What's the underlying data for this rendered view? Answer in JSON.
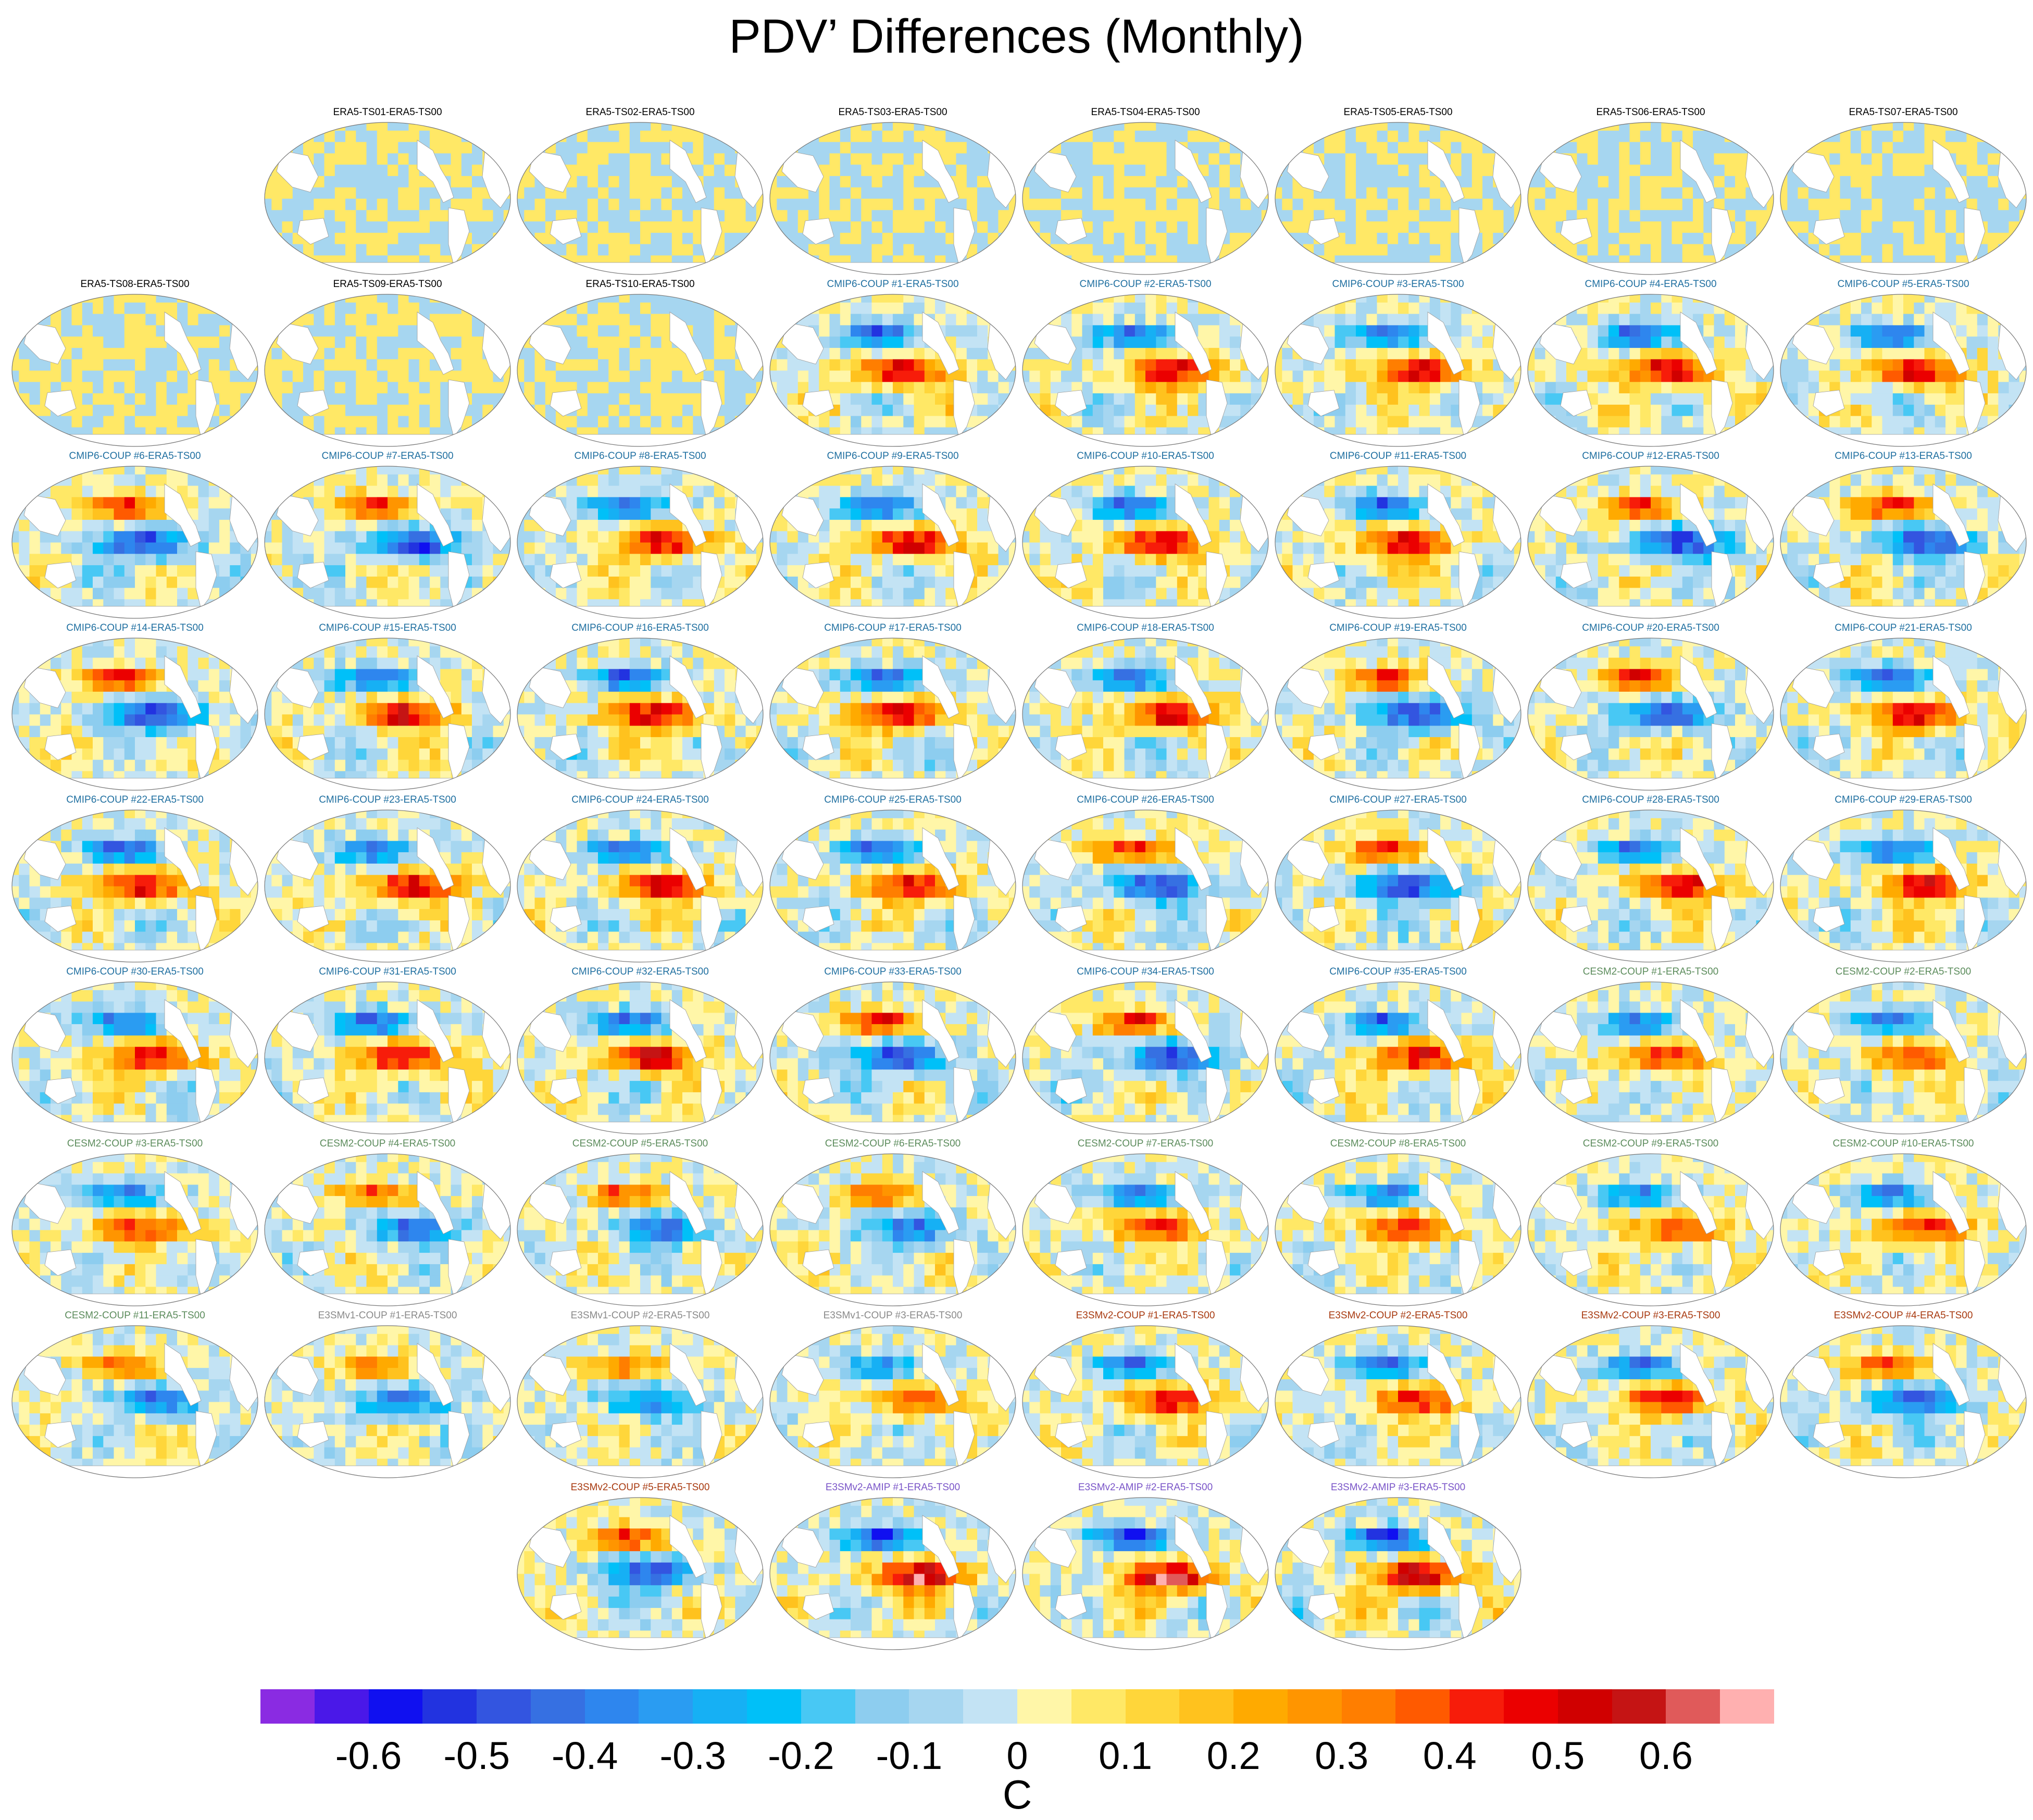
{
  "title": "PDV’ Differences (Monthly)",
  "chart_data": {
    "type": "heatmap",
    "title": "PDV’ Differences (Monthly)",
    "description_unit": "C",
    "colorbar": {
      "label": "C",
      "ticks": [
        -0.6,
        -0.5,
        -0.4,
        -0.3,
        -0.2,
        -0.1,
        0,
        0.1,
        0.2,
        0.3,
        0.4,
        0.5,
        0.6
      ],
      "tick_labels": [
        "-0.6",
        "-0.5",
        "-0.4",
        "-0.3",
        "-0.2",
        "-0.1",
        "0",
        "0.1",
        "0.2",
        "0.3",
        "0.4",
        "0.5",
        "0.6"
      ],
      "range": [
        -0.7,
        0.7
      ],
      "colors": [
        "#8a2be2",
        "#4a18e8",
        "#1010f0",
        "#2233e0",
        "#3355e0",
        "#3670e2",
        "#2e86ee",
        "#2a9cf2",
        "#16b0f4",
        "#00c0f8",
        "#48c8f4",
        "#8dcdef",
        "#a6d6f0",
        "#c3e3f4",
        "#fff6a8",
        "#ffe866",
        "#ffd63a",
        "#ffc21e",
        "#ffaa00",
        "#ff9500",
        "#ff7e00",
        "#ff5a00",
        "#f71c0a",
        "#eb0000",
        "#d00000",
        "#c51414",
        "#e05a5a",
        "#ffb0b0"
      ]
    },
    "panels": [
      {
        "label": "ERA5-TS01-ERA5-TS00",
        "group": "ERA5",
        "intensity": 0.15
      },
      {
        "label": "ERA5-TS02-ERA5-TS00",
        "group": "ERA5",
        "intensity": 0.15
      },
      {
        "label": "ERA5-TS03-ERA5-TS00",
        "group": "ERA5",
        "intensity": 0.15
      },
      {
        "label": "ERA5-TS04-ERA5-TS00",
        "group": "ERA5",
        "intensity": 0.15
      },
      {
        "label": "ERA5-TS05-ERA5-TS00",
        "group": "ERA5",
        "intensity": 0.15
      },
      {
        "label": "ERA5-TS06-ERA5-TS00",
        "group": "ERA5",
        "intensity": 0.15
      },
      {
        "label": "ERA5-TS07-ERA5-TS00",
        "group": "ERA5",
        "intensity": 0.15
      },
      {
        "label": "ERA5-TS08-ERA5-TS00",
        "group": "ERA5",
        "intensity": 0.15
      },
      {
        "label": "ERA5-TS09-ERA5-TS00",
        "group": "ERA5",
        "intensity": 0.15
      },
      {
        "label": "ERA5-TS10-ERA5-TS00",
        "group": "ERA5",
        "intensity": 0.15
      },
      {
        "label": "CMIP6-COUP  #1-ERA5-TS00",
        "group": "CMIP6",
        "intensity": 0.55
      },
      {
        "label": "CMIP6-COUP  #2-ERA5-TS00",
        "group": "CMIP6",
        "intensity": 0.55
      },
      {
        "label": "CMIP6-COUP  #3-ERA5-TS00",
        "group": "CMIP6",
        "intensity": 0.55
      },
      {
        "label": "CMIP6-COUP  #4-ERA5-TS00",
        "group": "CMIP6",
        "intensity": 0.55
      },
      {
        "label": "CMIP6-COUP  #5-ERA5-TS00",
        "group": "CMIP6",
        "intensity": 0.55
      },
      {
        "label": "CMIP6-COUP  #6-ERA5-TS00",
        "group": "CMIP6",
        "intensity": 0.55
      },
      {
        "label": "CMIP6-COUP  #7-ERA5-TS00",
        "group": "CMIP6",
        "intensity": 0.55
      },
      {
        "label": "CMIP6-COUP  #8-ERA5-TS00",
        "group": "CMIP6",
        "intensity": 0.55
      },
      {
        "label": "CMIP6-COUP  #9-ERA5-TS00",
        "group": "CMIP6",
        "intensity": 0.55
      },
      {
        "label": "CMIP6-COUP  #10-ERA5-TS00",
        "group": "CMIP6",
        "intensity": 0.55
      },
      {
        "label": "CMIP6-COUP  #11-ERA5-TS00",
        "group": "CMIP6",
        "intensity": 0.55
      },
      {
        "label": "CMIP6-COUP  #12-ERA5-TS00",
        "group": "CMIP6",
        "intensity": 0.55
      },
      {
        "label": "CMIP6-COUP  #13-ERA5-TS00",
        "group": "CMIP6",
        "intensity": 0.55
      },
      {
        "label": "CMIP6-COUP  #14-ERA5-TS00",
        "group": "CMIP6",
        "intensity": 0.55
      },
      {
        "label": "CMIP6-COUP  #15-ERA5-TS00",
        "group": "CMIP6",
        "intensity": 0.55
      },
      {
        "label": "CMIP6-COUP  #16-ERA5-TS00",
        "group": "CMIP6",
        "intensity": 0.55
      },
      {
        "label": "CMIP6-COUP  #17-ERA5-TS00",
        "group": "CMIP6",
        "intensity": 0.55
      },
      {
        "label": "CMIP6-COUP  #18-ERA5-TS00",
        "group": "CMIP6",
        "intensity": 0.55
      },
      {
        "label": "CMIP6-COUP  #19-ERA5-TS00",
        "group": "CMIP6",
        "intensity": 0.55
      },
      {
        "label": "CMIP6-COUP  #20-ERA5-TS00",
        "group": "CMIP6",
        "intensity": 0.55
      },
      {
        "label": "CMIP6-COUP  #21-ERA5-TS00",
        "group": "CMIP6",
        "intensity": 0.55
      },
      {
        "label": "CMIP6-COUP  #22-ERA5-TS00",
        "group": "CMIP6",
        "intensity": 0.55
      },
      {
        "label": "CMIP6-COUP  #23-ERA5-TS00",
        "group": "CMIP6",
        "intensity": 0.55
      },
      {
        "label": "CMIP6-COUP  #24-ERA5-TS00",
        "group": "CMIP6",
        "intensity": 0.55
      },
      {
        "label": "CMIP6-COUP  #25-ERA5-TS00",
        "group": "CMIP6",
        "intensity": 0.55
      },
      {
        "label": "CMIP6-COUP  #26-ERA5-TS00",
        "group": "CMIP6",
        "intensity": 0.55
      },
      {
        "label": "CMIP6-COUP  #27-ERA5-TS00",
        "group": "CMIP6",
        "intensity": 0.55
      },
      {
        "label": "CMIP6-COUP  #28-ERA5-TS00",
        "group": "CMIP6",
        "intensity": 0.55
      },
      {
        "label": "CMIP6-COUP  #29-ERA5-TS00",
        "group": "CMIP6",
        "intensity": 0.55
      },
      {
        "label": "CMIP6-COUP  #30-ERA5-TS00",
        "group": "CMIP6",
        "intensity": 0.55
      },
      {
        "label": "CMIP6-COUP  #31-ERA5-TS00",
        "group": "CMIP6",
        "intensity": 0.55
      },
      {
        "label": "CMIP6-COUP  #32-ERA5-TS00",
        "group": "CMIP6",
        "intensity": 0.55
      },
      {
        "label": "CMIP6-COUP  #33-ERA5-TS00",
        "group": "CMIP6",
        "intensity": 0.55
      },
      {
        "label": "CMIP6-COUP  #34-ERA5-TS00",
        "group": "CMIP6",
        "intensity": 0.55
      },
      {
        "label": "CMIP6-COUP  #35-ERA5-TS00",
        "group": "CMIP6",
        "intensity": 0.55
      },
      {
        "label": "CESM2-COUP  #1-ERA5-TS00",
        "group": "CESM2",
        "intensity": 0.45
      },
      {
        "label": "CESM2-COUP  #2-ERA5-TS00",
        "group": "CESM2",
        "intensity": 0.45
      },
      {
        "label": "CESM2-COUP  #3-ERA5-TS00",
        "group": "CESM2",
        "intensity": 0.45
      },
      {
        "label": "CESM2-COUP  #4-ERA5-TS00",
        "group": "CESM2",
        "intensity": 0.45
      },
      {
        "label": "CESM2-COUP  #5-ERA5-TS00",
        "group": "CESM2",
        "intensity": 0.45
      },
      {
        "label": "CESM2-COUP  #6-ERA5-TS00",
        "group": "CESM2",
        "intensity": 0.45
      },
      {
        "label": "CESM2-COUP  #7-ERA5-TS00",
        "group": "CESM2",
        "intensity": 0.45
      },
      {
        "label": "CESM2-COUP  #8-ERA5-TS00",
        "group": "CESM2",
        "intensity": 0.45
      },
      {
        "label": "CESM2-COUP  #9-ERA5-TS00",
        "group": "CESM2",
        "intensity": 0.45
      },
      {
        "label": "CESM2-COUP  #10-ERA5-TS00",
        "group": "CESM2",
        "intensity": 0.45
      },
      {
        "label": "CESM2-COUP  #11-ERA5-TS00",
        "group": "CESM2",
        "intensity": 0.45
      },
      {
        "label": "E3SMv1-COUP #1-ERA5-TS00",
        "group": "E3SMv1",
        "intensity": 0.4
      },
      {
        "label": "E3SMv1-COUP #2-ERA5-TS00",
        "group": "E3SMv1",
        "intensity": 0.4
      },
      {
        "label": "E3SMv1-COUP #3-ERA5-TS00",
        "group": "E3SMv1",
        "intensity": 0.4
      },
      {
        "label": "E3SMv2-COUP #1-ERA5-TS00",
        "group": "E3SMv2",
        "intensity": 0.5
      },
      {
        "label": "E3SMv2-COUP #2-ERA5-TS00",
        "group": "E3SMv2",
        "intensity": 0.5
      },
      {
        "label": "E3SMv2-COUP #3-ERA5-TS00",
        "group": "E3SMv2",
        "intensity": 0.5
      },
      {
        "label": "E3SMv2-COUP #4-ERA5-TS00",
        "group": "E3SMv2",
        "intensity": 0.5
      },
      {
        "label": "E3SMv2-COUP #5-ERA5-TS00",
        "group": "E3SMv2",
        "intensity": 0.5
      },
      {
        "label": "E3SMv2-AMIP #1-ERA5-TS00",
        "group": "E3SMv2-AMIP",
        "intensity": 0.65
      },
      {
        "label": "E3SMv2-AMIP #2-ERA5-TS00",
        "group": "E3SMv2-AMIP",
        "intensity": 0.65
      },
      {
        "label": "E3SMv2-AMIP #3-ERA5-TS00",
        "group": "E3SMv2-AMIP",
        "intensity": 0.65
      }
    ],
    "group_label_colors": {
      "ERA5": "#000000",
      "CMIP6": "#1f6fa0",
      "CESM2": "#5c8c5c",
      "E3SMv1": "#8a8a8a",
      "E3SMv2": "#a83a10",
      "E3SMv2-AMIP": "#7a55c8"
    }
  }
}
